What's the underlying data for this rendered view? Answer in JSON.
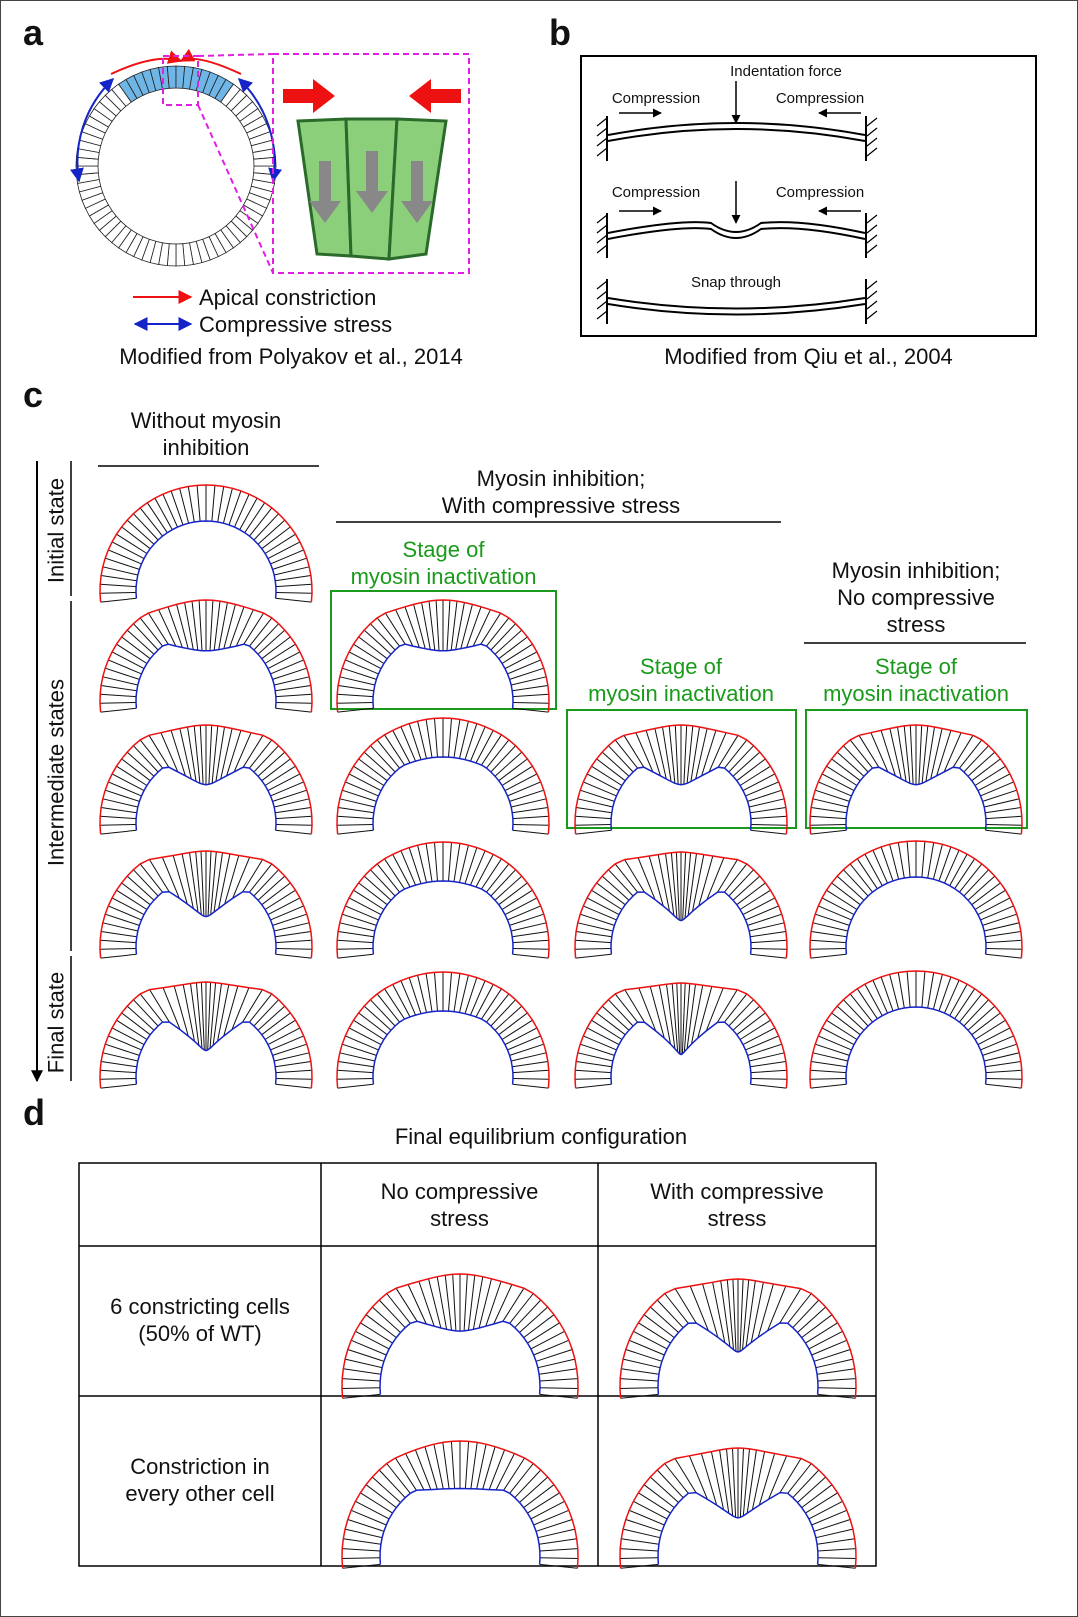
{
  "panels": {
    "a": {
      "label": "a",
      "legend": [
        "Apical constriction",
        "Compressive stress"
      ],
      "credit": "Modified from Polyakov et al., 2014"
    },
    "b": {
      "label": "b",
      "rows": [
        {
          "left": "Compression",
          "center": "Indentation force",
          "right": "Compression"
        },
        {
          "left": "Compression",
          "right": "Compression"
        },
        {
          "center": "Snap through"
        }
      ],
      "credit": "Modified from Qiu et al., 2004"
    },
    "c": {
      "label": "c",
      "column_headers": [
        "Without myosin\ninhibition",
        "Myosin inhibition;\nWith compressive stress",
        "Myosin inhibition;\nNo compressive\nstress"
      ],
      "stage_labels": [
        "Stage of\nmyosin inactivation",
        "Stage of\nmyosin inactivation",
        "Stage of\nmyosin inactivation"
      ],
      "row_labels": [
        "Initial state",
        "Intermediate states",
        "Final state"
      ]
    },
    "d": {
      "label": "d",
      "title": "Final equilibrium configuration",
      "column_headers": [
        "No compressive\nstress",
        "With compressive\nstress"
      ],
      "row_headers": [
        "6 constricting cells\n(50% of WT)",
        "Constriction in\nevery other cell"
      ]
    }
  }
}
